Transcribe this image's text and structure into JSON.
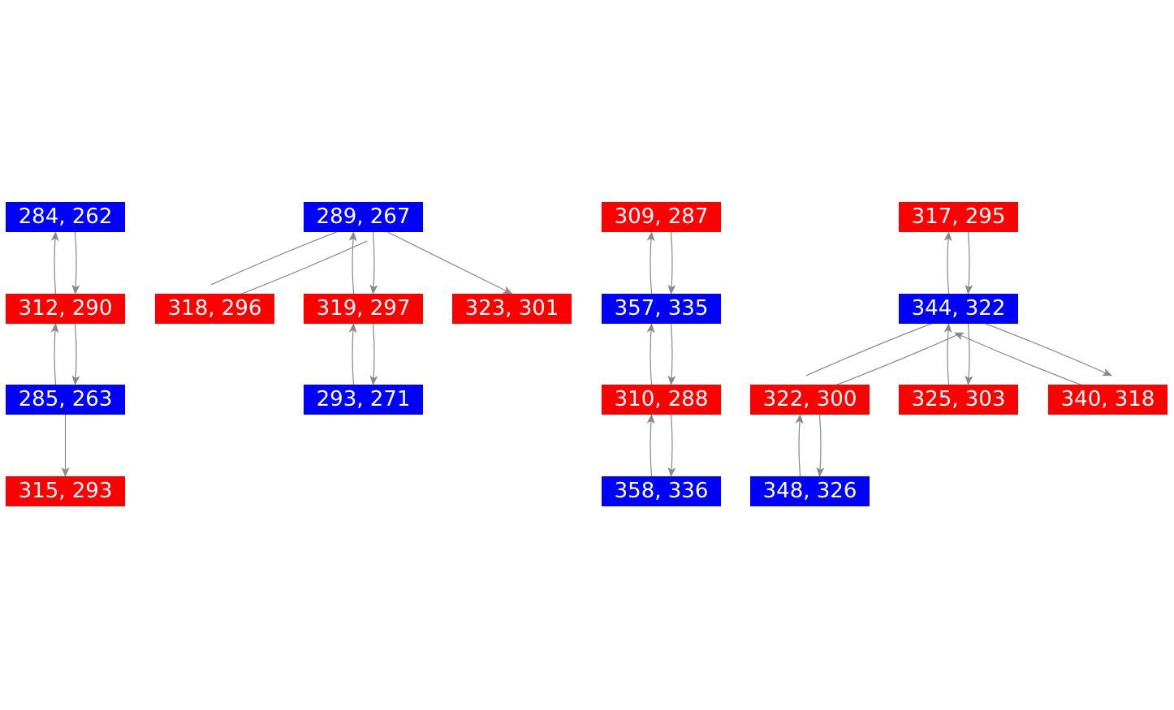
{
  "colors": {
    "blue": "#0000ff",
    "red": "#ff0000",
    "edge": "#888888",
    "text": "#ffffff"
  },
  "nodes": [
    {
      "id": "n284",
      "label": "284, 262",
      "color": "blue"
    },
    {
      "id": "n312",
      "label": "312, 290",
      "color": "red"
    },
    {
      "id": "n285",
      "label": "285, 263",
      "color": "blue"
    },
    {
      "id": "n315",
      "label": "315, 293",
      "color": "red"
    },
    {
      "id": "n289",
      "label": "289, 267",
      "color": "blue"
    },
    {
      "id": "n318",
      "label": "318, 296",
      "color": "red"
    },
    {
      "id": "n319",
      "label": "319, 297",
      "color": "red"
    },
    {
      "id": "n323",
      "label": "323, 301",
      "color": "red"
    },
    {
      "id": "n293",
      "label": "293, 271",
      "color": "blue"
    },
    {
      "id": "n309",
      "label": "309, 287",
      "color": "red"
    },
    {
      "id": "n357",
      "label": "357, 335",
      "color": "blue"
    },
    {
      "id": "n310",
      "label": "310, 288",
      "color": "red"
    },
    {
      "id": "n358",
      "label": "358, 336",
      "color": "blue"
    },
    {
      "id": "n317",
      "label": "317, 295",
      "color": "red"
    },
    {
      "id": "n344",
      "label": "344, 322",
      "color": "blue"
    },
    {
      "id": "n322",
      "label": "322, 300",
      "color": "red"
    },
    {
      "id": "n325",
      "label": "325, 303",
      "color": "red"
    },
    {
      "id": "n340",
      "label": "340, 318",
      "color": "red"
    },
    {
      "id": "n348",
      "label": "348, 326",
      "color": "blue"
    }
  ],
  "edges": [
    [
      "n284",
      "n312"
    ],
    [
      "n312",
      "n284"
    ],
    [
      "n312",
      "n285"
    ],
    [
      "n285",
      "n312"
    ],
    [
      "n285",
      "n315"
    ],
    [
      "n289",
      "n318"
    ],
    [
      "n318",
      "n289"
    ],
    [
      "n289",
      "n319"
    ],
    [
      "n319",
      "n289"
    ],
    [
      "n289",
      "n323"
    ],
    [
      "n319",
      "n293"
    ],
    [
      "n293",
      "n319"
    ],
    [
      "n309",
      "n357"
    ],
    [
      "n357",
      "n309"
    ],
    [
      "n357",
      "n310"
    ],
    [
      "n310",
      "n357"
    ],
    [
      "n310",
      "n358"
    ],
    [
      "n358",
      "n310"
    ],
    [
      "n317",
      "n344"
    ],
    [
      "n344",
      "n317"
    ],
    [
      "n344",
      "n322"
    ],
    [
      "n322",
      "n344"
    ],
    [
      "n344",
      "n325"
    ],
    [
      "n325",
      "n344"
    ],
    [
      "n344",
      "n340"
    ],
    [
      "n340",
      "n344"
    ],
    [
      "n322",
      "n348"
    ],
    [
      "n348",
      "n322"
    ]
  ]
}
